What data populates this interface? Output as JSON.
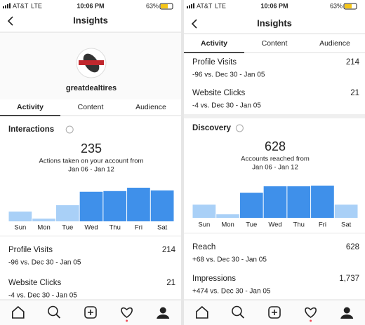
{
  "screens": [
    {
      "status": {
        "carrier": "AT&T",
        "network": "LTE",
        "time": "10:06 PM",
        "battery": "63%"
      },
      "title": "Insights",
      "profile_name": "greatdealtires",
      "tabs": [
        "Activity",
        "Content",
        "Audience"
      ],
      "top_rows": [],
      "section": {
        "title": "Interactions",
        "total": 235,
        "caption": "Actions taken on your account from",
        "range": "Jan 06 - Jan 12"
      },
      "chart": {
        "type": "bar",
        "categories": [
          "Sun",
          "Mon",
          "Tue",
          "Wed",
          "Thu",
          "Fri",
          "Sat"
        ],
        "values": [
          29,
          8,
          48,
          88,
          90,
          100,
          92
        ],
        "colors": [
          "#a9d0f7",
          "#a9d0f7",
          "#a9d0f7",
          "#3f90ea",
          "#3f90ea",
          "#3f90ea",
          "#3f90ea"
        ],
        "ylim": [
          0,
          100
        ]
      },
      "rows": [
        {
          "label": "Profile Visits",
          "value": 214,
          "change": "-96 vs. Dec 30 - Jan 05"
        },
        {
          "label": "Website Clicks",
          "value": 21,
          "change": "-4 vs. Dec 30 - Jan 05"
        }
      ]
    },
    {
      "status": {
        "carrier": "AT&T",
        "network": "LTE",
        "time": "10:06 PM",
        "battery": "63%"
      },
      "title": "Insights",
      "profile_name": null,
      "tabs": [
        "Activity",
        "Content",
        "Audience"
      ],
      "top_rows": [
        {
          "label": "Profile Visits",
          "value": 214,
          "change": "-96 vs. Dec 30 - Jan 05"
        },
        {
          "label": "Website Clicks",
          "value": 21,
          "change": "-4 vs. Dec 30 - Jan 05"
        }
      ],
      "section": {
        "title": "Discovery",
        "total": 628,
        "caption": "Accounts reached from",
        "range": "Jan 06 - Jan 12"
      },
      "chart": {
        "type": "bar",
        "categories": [
          "Sun",
          "Mon",
          "Tue",
          "Wed",
          "Thu",
          "Fri",
          "Sat"
        ],
        "values": [
          41,
          11,
          78,
          98,
          98,
          100,
          41
        ],
        "colors": [
          "#a9d0f7",
          "#a9d0f7",
          "#3f90ea",
          "#3f90ea",
          "#3f90ea",
          "#3f90ea",
          "#a9d0f7"
        ],
        "ylim": [
          0,
          100
        ]
      },
      "rows": [
        {
          "label": "Reach",
          "value": 628,
          "change": "+68 vs. Dec 30 - Jan 05"
        },
        {
          "label": "Impressions",
          "value": "1,737",
          "change": "+474 vs. Dec 30 - Jan 05"
        }
      ]
    }
  ]
}
